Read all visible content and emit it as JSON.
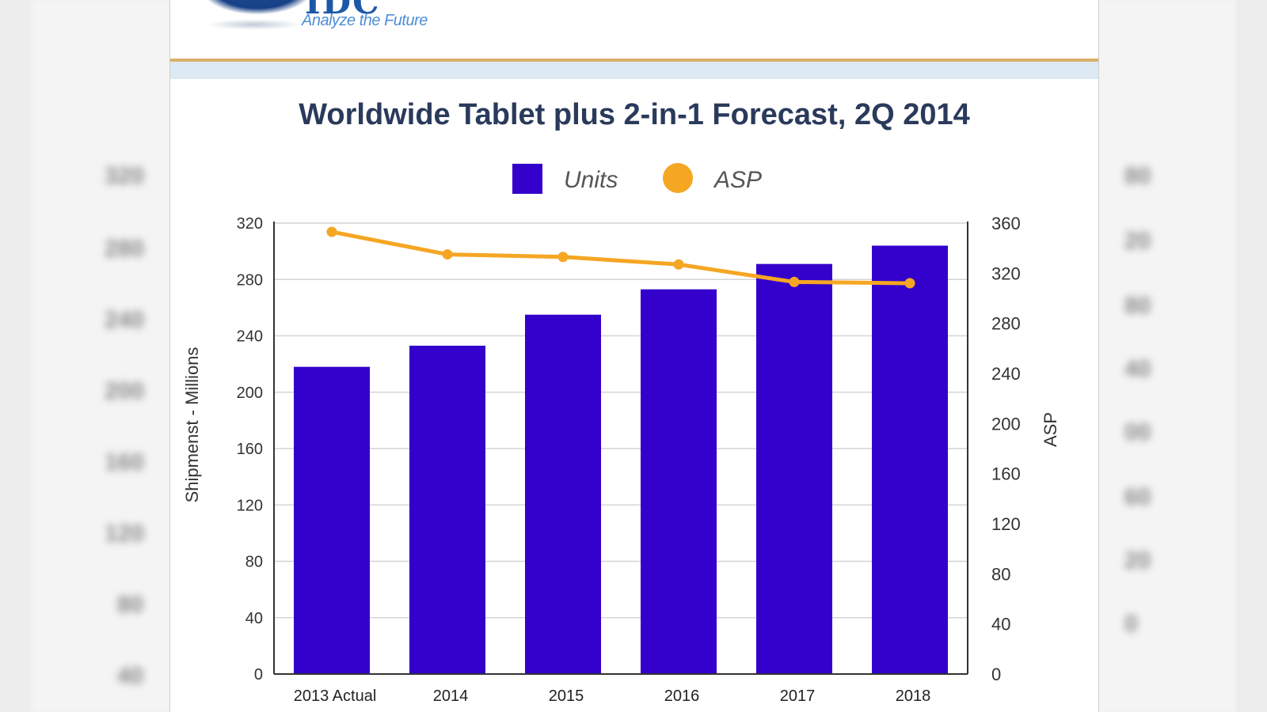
{
  "header": {
    "logo_letters": "IDC",
    "tagline": "Analyze the Future"
  },
  "colors": {
    "bars": "#3300cc",
    "line": "#f5a623",
    "grid": "#d4d4d4",
    "title": "#2a3a5c",
    "gold_rule": "#d9b068",
    "blue_band": "#dde9f3"
  },
  "chart_data": {
    "type": "bar",
    "title": "Worldwide Tablet plus 2-in-1 Forecast, 2Q 2014",
    "categories": [
      "2013 Actual",
      "2014",
      "2015",
      "2016",
      "2017",
      "2018"
    ],
    "series": [
      {
        "name": "Units",
        "type": "bar",
        "axis": "left",
        "values": [
          218,
          233,
          255,
          273,
          291,
          304
        ]
      },
      {
        "name": "ASP",
        "type": "line",
        "axis": "right",
        "values": [
          353,
          335,
          333,
          327,
          313,
          312
        ]
      }
    ],
    "ylabel": "Shipmenst - Millions",
    "y2label": "ASP",
    "ylim": [
      0,
      320
    ],
    "yticks": [
      0,
      40,
      80,
      120,
      160,
      200,
      240,
      280,
      320
    ],
    "y2lim": [
      0,
      360
    ],
    "y2ticks": [
      0,
      40,
      80,
      120,
      160,
      200,
      240,
      280,
      320,
      360
    ],
    "grid": true,
    "legend_position": "top-center"
  }
}
